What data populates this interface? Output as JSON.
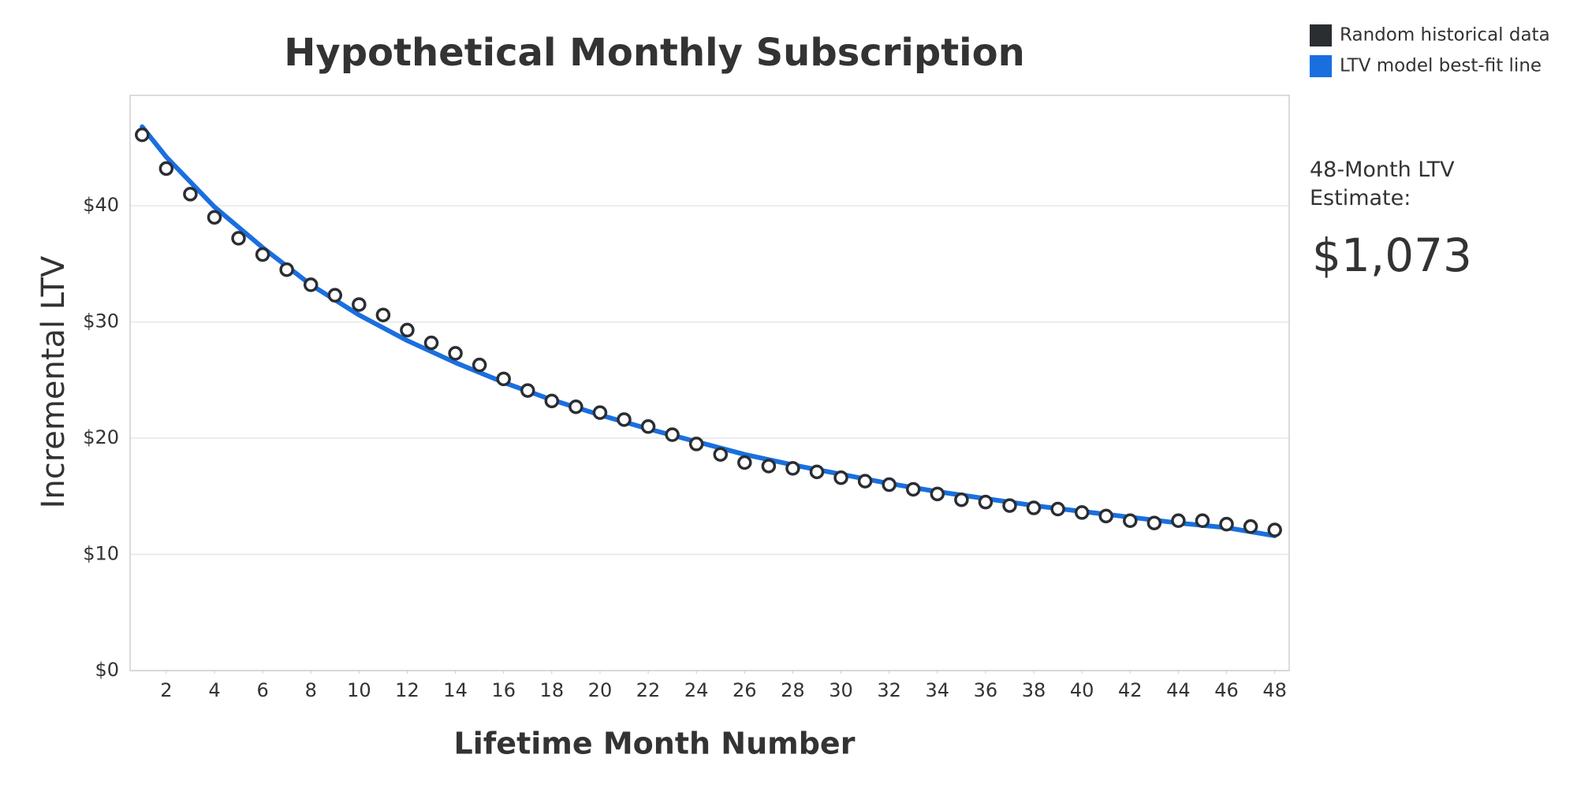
{
  "chart_data": {
    "type": "scatter",
    "title": "Hypothetical Monthly Subscription",
    "x_label": "Lifetime Month Number",
    "y_label": "Incremental LTV",
    "xlim": [
      0.5,
      48.6
    ],
    "ylim": [
      0,
      49.5
    ],
    "xticks": [
      2,
      4,
      6,
      8,
      10,
      12,
      14,
      16,
      18,
      20,
      22,
      24,
      26,
      28,
      30,
      32,
      34,
      36,
      38,
      40,
      42,
      44,
      46,
      48
    ],
    "yticks": [
      {
        "value": 0,
        "label": "$0"
      },
      {
        "value": 10,
        "label": "$10"
      },
      {
        "value": 20,
        "label": "$20"
      },
      {
        "value": 30,
        "label": "$30"
      },
      {
        "value": 40,
        "label": "$40"
      }
    ],
    "grid": true,
    "legend": "top-right",
    "series": [
      {
        "name": "Random historical data",
        "type": "scatter",
        "color": "#2a2e33",
        "x": [
          1,
          2,
          3,
          4,
          5,
          6,
          7,
          8,
          9,
          10,
          11,
          12,
          13,
          14,
          15,
          16,
          17,
          18,
          19,
          20,
          21,
          22,
          23,
          24,
          25,
          26,
          27,
          28,
          29,
          30,
          31,
          32,
          33,
          34,
          35,
          36,
          37,
          38,
          39,
          40,
          41,
          42,
          43,
          44,
          45,
          46,
          47,
          48
        ],
        "values": [
          46.1,
          43.2,
          41.0,
          39.0,
          37.2,
          35.8,
          34.5,
          33.2,
          32.3,
          31.5,
          30.6,
          29.3,
          28.2,
          27.3,
          26.3,
          25.1,
          24.1,
          23.2,
          22.7,
          22.2,
          21.6,
          21.0,
          20.3,
          19.5,
          18.6,
          17.9,
          17.6,
          17.4,
          17.1,
          16.6,
          16.3,
          16.0,
          15.6,
          15.2,
          14.7,
          14.5,
          14.2,
          14.0,
          13.9,
          13.6,
          13.3,
          12.9,
          12.7,
          12.9,
          12.9,
          12.6,
          12.4,
          12.1
        ]
      },
      {
        "name": "LTV model best-fit line",
        "type": "line",
        "color": "#1a6fdf",
        "x": [
          1,
          2,
          4,
          6,
          8,
          10,
          12,
          14,
          16,
          18,
          20,
          22,
          24,
          26,
          28,
          30,
          32,
          34,
          36,
          38,
          40,
          42,
          44,
          46,
          48
        ],
        "values": [
          46.8,
          44.2,
          39.9,
          36.4,
          33.2,
          30.6,
          28.4,
          26.5,
          24.8,
          23.3,
          22.0,
          20.8,
          19.7,
          18.6,
          17.7,
          16.9,
          16.1,
          15.4,
          14.8,
          14.2,
          13.7,
          13.2,
          12.7,
          12.3,
          11.6
        ]
      }
    ],
    "annotations": [
      {
        "text": "48-Month LTV Estimate:"
      },
      {
        "text": "$1,073"
      }
    ]
  }
}
